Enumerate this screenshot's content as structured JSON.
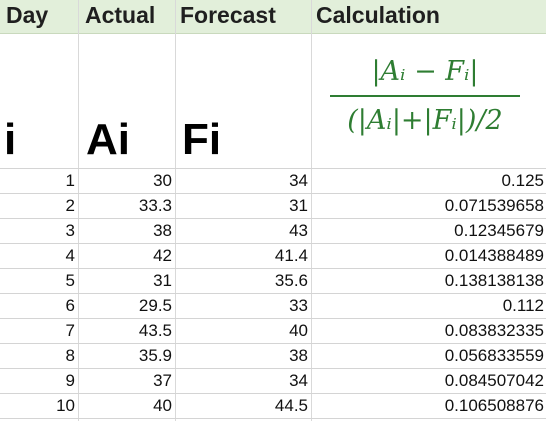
{
  "headers": {
    "day": "Day",
    "actual": "Actual",
    "forecast": "Forecast",
    "calculation": "Calculation"
  },
  "subheaders": {
    "i": "i",
    "ai": "Ai",
    "fi": "Fi"
  },
  "formula": {
    "numerator": "|Aᵢ − Fᵢ|",
    "denominator": "(|Aᵢ|+|Fᵢ|)/2",
    "color": "#2e7d32"
  },
  "rows": [
    {
      "day": "1",
      "actual": "30",
      "forecast": "34",
      "calc": "0.125"
    },
    {
      "day": "2",
      "actual": "33.3",
      "forecast": "31",
      "calc": "0.071539658"
    },
    {
      "day": "3",
      "actual": "38",
      "forecast": "43",
      "calc": "0.12345679"
    },
    {
      "day": "4",
      "actual": "42",
      "forecast": "41.4",
      "calc": "0.014388489"
    },
    {
      "day": "5",
      "actual": "31",
      "forecast": "35.6",
      "calc": "0.138138138"
    },
    {
      "day": "6",
      "actual": "29.5",
      "forecast": "33",
      "calc": "0.112"
    },
    {
      "day": "7",
      "actual": "43.5",
      "forecast": "40",
      "calc": "0.083832335"
    },
    {
      "day": "8",
      "actual": "35.9",
      "forecast": "38",
      "calc": "0.056833559"
    },
    {
      "day": "9",
      "actual": "37",
      "forecast": "34",
      "calc": "0.084507042"
    },
    {
      "day": "10",
      "actual": "40",
      "forecast": "44.5",
      "calc": "0.106508876"
    }
  ],
  "colors": {
    "header_fill": "#e2efda",
    "grid": "#d9d9d9"
  }
}
